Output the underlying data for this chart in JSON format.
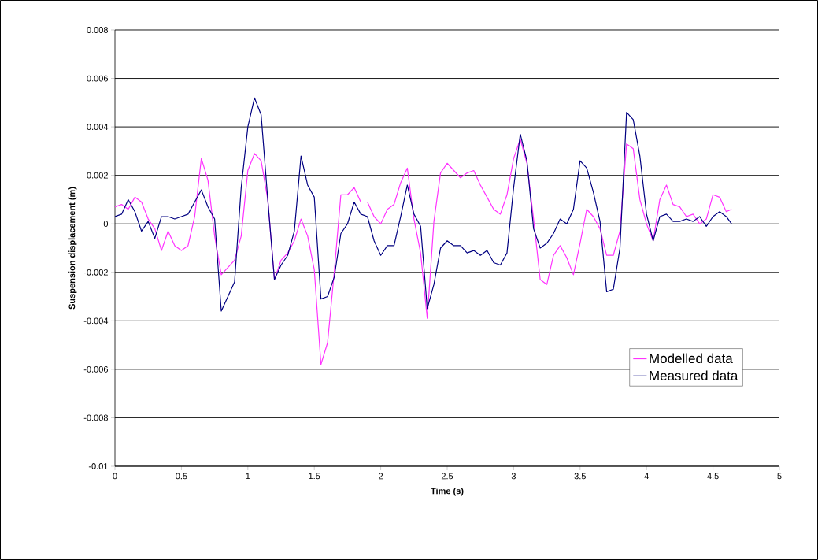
{
  "chart_data": {
    "type": "line",
    "xlabel": "Time (s)",
    "ylabel": "Suspension displacement (m)",
    "xlim": [
      0,
      5
    ],
    "ylim": [
      -0.01,
      0.008
    ],
    "xticks": [
      0,
      0.5,
      1,
      1.5,
      2,
      2.5,
      3,
      3.5,
      4,
      4.5,
      5
    ],
    "yticks": [
      -0.01,
      -0.008,
      -0.006,
      -0.004,
      -0.002,
      0,
      0.002,
      0.004,
      0.006,
      0.008
    ],
    "grid": "y",
    "legend": "bottom right",
    "marker": "none",
    "line_style": "solid",
    "x": [
      0,
      0.05,
      0.1,
      0.15,
      0.2,
      0.25,
      0.3,
      0.35,
      0.4,
      0.45,
      0.5,
      0.55,
      0.6,
      0.65,
      0.7,
      0.75,
      0.8,
      0.85,
      0.9,
      0.95,
      1.0,
      1.05,
      1.1,
      1.15,
      1.2,
      1.25,
      1.3,
      1.35,
      1.4,
      1.45,
      1.5,
      1.55,
      1.6,
      1.65,
      1.7,
      1.75,
      1.8,
      1.85,
      1.9,
      1.95,
      2.0,
      2.05,
      2.1,
      2.15,
      2.2,
      2.25,
      2.3,
      2.35,
      2.4,
      2.45,
      2.5,
      2.55,
      2.6,
      2.65,
      2.7,
      2.75,
      2.8,
      2.85,
      2.9,
      2.95,
      3.0,
      3.05,
      3.1,
      3.15,
      3.2,
      3.25,
      3.3,
      3.35,
      3.4,
      3.45,
      3.5,
      3.55,
      3.6,
      3.65,
      3.7,
      3.75,
      3.8,
      3.85,
      3.9,
      3.95,
      4.0,
      4.05,
      4.1,
      4.15,
      4.2,
      4.25,
      4.3,
      4.35,
      4.4,
      4.45,
      4.5,
      4.55,
      4.6,
      4.64
    ],
    "series": [
      {
        "name": "Modelled data",
        "color": "#ff33ff",
        "values": [
          0.0007,
          0.0008,
          0.0006,
          0.0011,
          0.0009,
          0.0002,
          -0.0002,
          -0.0011,
          -0.0003,
          -0.0009,
          -0.0011,
          -0.0009,
          0.0003,
          0.0027,
          0.0018,
          -0.0005,
          -0.0021,
          -0.0018,
          -0.0015,
          -0.0005,
          0.0022,
          0.0029,
          0.0026,
          0.001,
          -0.0023,
          -0.0015,
          -0.0012,
          -0.0007,
          0.0002,
          -0.0005,
          -0.0019,
          -0.0058,
          -0.0049,
          -0.002,
          0.0012,
          0.0012,
          0.0015,
          0.0009,
          0.0009,
          0.0003,
          0.0,
          0.0006,
          0.0008,
          0.0017,
          0.0023,
          0.0002,
          -0.0012,
          -0.0039,
          0.0001,
          0.0021,
          0.0025,
          0.0022,
          0.0019,
          0.0021,
          0.0022,
          0.0016,
          0.0011,
          0.0006,
          0.0004,
          0.0012,
          0.0027,
          0.0035,
          0.0025,
          0.0002,
          -0.0023,
          -0.0025,
          -0.0013,
          -0.0009,
          -0.0014,
          -0.0021,
          -0.0008,
          0.0006,
          0.0003,
          -0.0002,
          -0.0013,
          -0.0013,
          -0.0003,
          0.0033,
          0.0031,
          0.001,
          0.0,
          -0.0007,
          0.001,
          0.0016,
          0.0008,
          0.0007,
          0.0003,
          0.0004,
          0.0,
          0.0002,
          0.0012,
          0.0011,
          0.0005,
          0.0006
        ]
      },
      {
        "name": "Measured data",
        "color": "#000080",
        "values": [
          0.0003,
          0.0004,
          0.001,
          0.0005,
          -0.0003,
          0.0001,
          -0.0006,
          0.0003,
          0.0003,
          0.0002,
          0.0003,
          0.0004,
          0.0009,
          0.0014,
          0.0007,
          0.0002,
          -0.0036,
          -0.003,
          -0.0024,
          0.0015,
          0.004,
          0.0052,
          0.0045,
          0.001,
          -0.0023,
          -0.0017,
          -0.0013,
          -0.0003,
          0.0028,
          0.0016,
          0.0011,
          -0.0031,
          -0.003,
          -0.0022,
          -0.0004,
          0.0,
          0.0009,
          0.0004,
          0.0003,
          -0.0007,
          -0.0013,
          -0.0009,
          -0.0009,
          0.0003,
          0.0016,
          0.0004,
          -0.0001,
          -0.0035,
          -0.0025,
          -0.001,
          -0.0007,
          -0.0009,
          -0.0009,
          -0.0012,
          -0.0011,
          -0.0013,
          -0.0011,
          -0.0016,
          -0.0017,
          -0.0012,
          0.0015,
          0.0037,
          0.0026,
          -0.0002,
          -0.001,
          -0.0008,
          -0.0004,
          0.0002,
          0.0,
          0.0006,
          0.0026,
          0.0023,
          0.0013,
          0.0001,
          -0.0028,
          -0.0027,
          -0.001,
          0.0046,
          0.0043,
          0.0028,
          0.0004,
          -0.0007,
          0.0003,
          0.0004,
          0.0001,
          0.0001,
          0.0002,
          0.0001,
          0.0003,
          -0.0001,
          0.0003,
          0.0005,
          0.0003,
          0.0
        ]
      }
    ]
  }
}
